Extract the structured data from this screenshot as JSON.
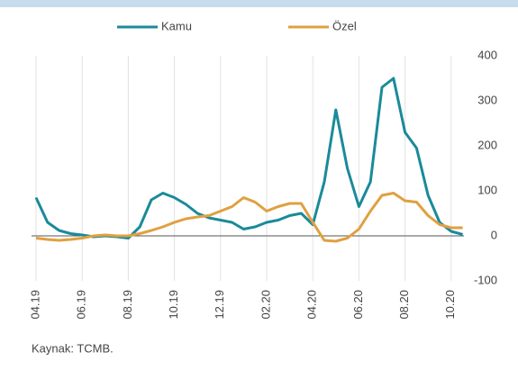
{
  "chart_data": {
    "type": "line",
    "categories": [
      "04.19",
      null,
      null,
      null,
      "06.19",
      null,
      null,
      null,
      "08.19",
      null,
      null,
      null,
      "10.19",
      null,
      null,
      null,
      "12.19",
      null,
      null,
      null,
      "02.20",
      null,
      null,
      null,
      "04.20",
      null,
      null,
      null,
      "06.20",
      null,
      null,
      null,
      "08.20",
      null,
      null,
      null,
      "10.20",
      null
    ],
    "series": [
      {
        "name": "Kamu",
        "color": "#1a8a9a",
        "values": [
          85,
          30,
          12,
          5,
          2,
          -2,
          0,
          -2,
          -5,
          20,
          80,
          95,
          85,
          70,
          50,
          40,
          35,
          30,
          15,
          20,
          30,
          35,
          45,
          50,
          25,
          120,
          280,
          150,
          65,
          120,
          330,
          350,
          230,
          195,
          90,
          30,
          10,
          3
        ]
      },
      {
        "name": "Özel",
        "color": "#e0a040",
        "values": [
          -5,
          -8,
          -10,
          -8,
          -5,
          0,
          2,
          0,
          0,
          5,
          12,
          20,
          30,
          38,
          42,
          45,
          55,
          65,
          85,
          75,
          55,
          65,
          72,
          72,
          30,
          -10,
          -12,
          -5,
          15,
          55,
          90,
          95,
          78,
          75,
          45,
          25,
          18,
          18
        ]
      }
    ],
    "ylim": [
      -100,
      400
    ],
    "yticks": [
      -100,
      0,
      100,
      200,
      300,
      400
    ],
    "grid": true,
    "legend": "top",
    "source": "Kaynak: TCMB."
  }
}
